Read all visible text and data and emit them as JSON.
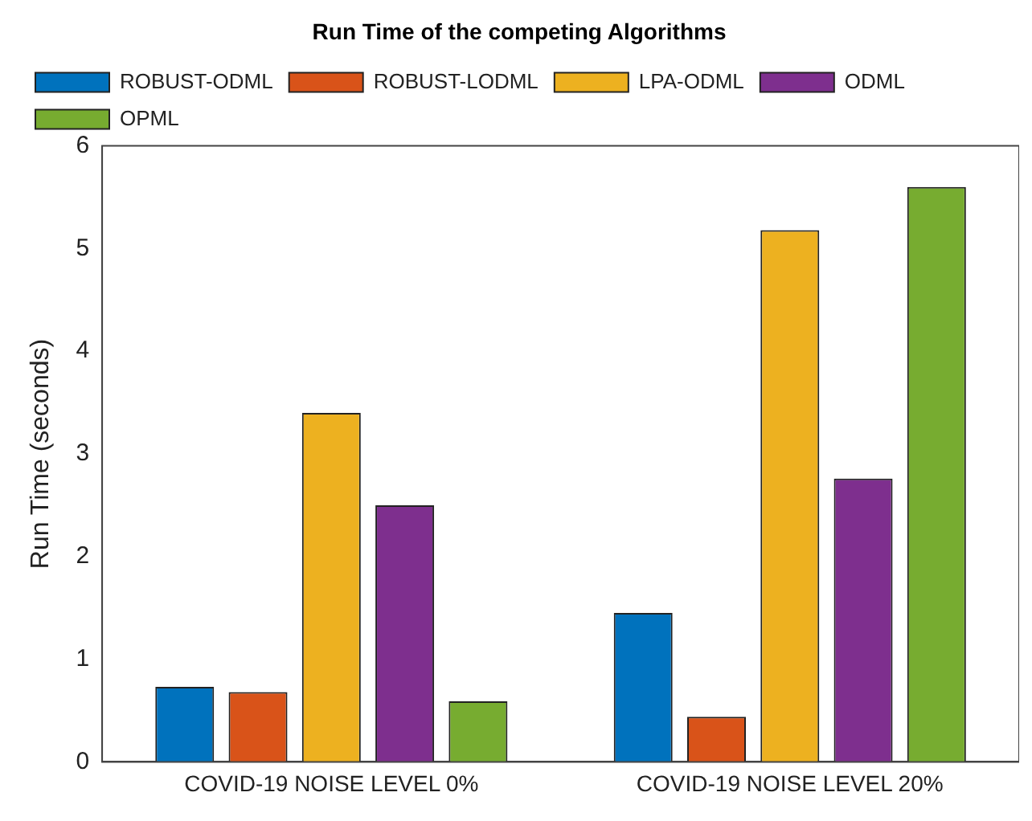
{
  "chart_data": {
    "type": "bar",
    "title": "Run Time of the competing Algorithms",
    "ylabel": "Run Time (seconds)",
    "categories": [
      "COVID-19 NOISE LEVEL 0%",
      "COVID-19 NOISE LEVEL 20%"
    ],
    "series": [
      {
        "name": "ROBUST-ODML",
        "color": "#0072bd",
        "values": [
          0.73,
          1.45
        ]
      },
      {
        "name": "ROBUST-LODML",
        "color": "#d95319",
        "values": [
          0.68,
          0.44
        ]
      },
      {
        "name": "LPA-ODML",
        "color": "#edb120",
        "values": [
          3.4,
          5.18
        ]
      },
      {
        "name": "ODML",
        "color": "#7e2f8e",
        "values": [
          2.5,
          2.76
        ]
      },
      {
        "name": "OPML",
        "color": "#77ac30",
        "values": [
          0.59,
          5.6
        ]
      }
    ],
    "ylim": [
      0,
      6
    ],
    "yticks": [
      0,
      1,
      2,
      3,
      4,
      5,
      6
    ],
    "grid": false,
    "legend": "top left"
  }
}
